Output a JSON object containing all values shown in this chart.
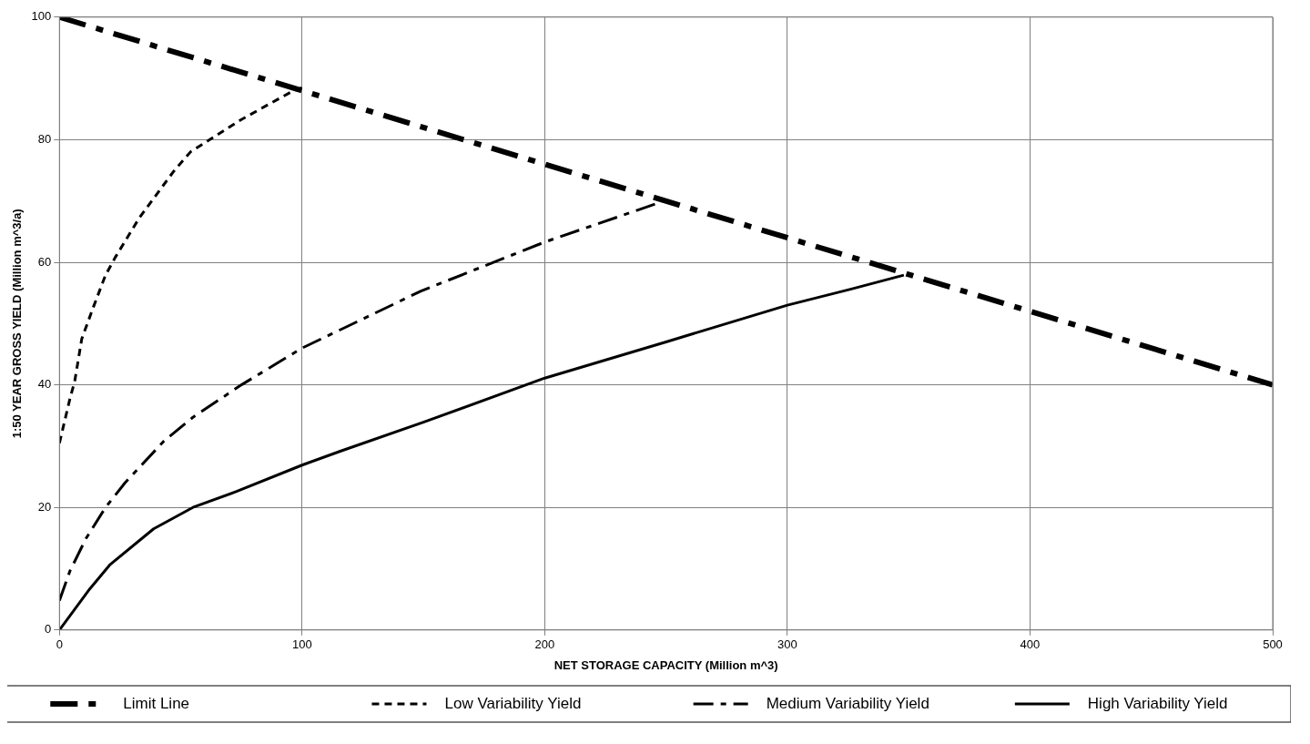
{
  "chart_data": {
    "type": "line",
    "xlabel": "NET STORAGE CAPACITY (Million m^3)",
    "ylabel": "1:50 YEAR GROSS YIELD (Million m^3/a)",
    "xlim": [
      0,
      500
    ],
    "xticks": [
      0,
      100,
      200,
      300,
      400,
      500
    ],
    "ylim": [
      0,
      100
    ],
    "yticks": [
      0,
      20,
      40,
      60,
      80,
      100
    ],
    "grid": true,
    "legend": "bottom",
    "marker": "none",
    "series": [
      {
        "name": "Limit Line",
        "color": "#000000",
        "line_style": "dashed",
        "x": [
          0,
          500
        ],
        "values": [
          100,
          40
        ]
      },
      {
        "name": "Low Variability Yield",
        "color": "#000000",
        "line_style": "dotted",
        "x": [
          0,
          4.3,
          6.3,
          9.2,
          14,
          19,
          23,
          33,
          47,
          54,
          75,
          96,
          100
        ],
        "values": [
          30.5,
          37.7,
          40.6,
          47.5,
          52.7,
          57.9,
          60.8,
          67.3,
          74.8,
          78,
          83.3,
          87.9,
          88.5
        ]
      },
      {
        "name": "Medium Variability Yield",
        "color": "#000000",
        "line_style": "dashed",
        "x": [
          0,
          4.3,
          10.9,
          19,
          27,
          43,
          55,
          75,
          100,
          119,
          149,
          200,
          247
        ],
        "values": [
          4.8,
          9.6,
          14.9,
          20,
          24,
          30.8,
          34.7,
          40,
          46,
          49.6,
          55.3,
          63.3,
          69.7
        ]
      },
      {
        "name": "High Variability Yield",
        "color": "#000000",
        "line_style": "solid",
        "x": [
          0,
          12.5,
          20.7,
          38.8,
          55,
          73,
          100,
          116,
          150,
          200,
          250,
          300,
          326,
          348
        ],
        "values": [
          0,
          6.7,
          10.6,
          16.5,
          20,
          22.6,
          26.9,
          29.2,
          33.9,
          41.1,
          47,
          53,
          55.6,
          57.9
        ]
      }
    ]
  }
}
